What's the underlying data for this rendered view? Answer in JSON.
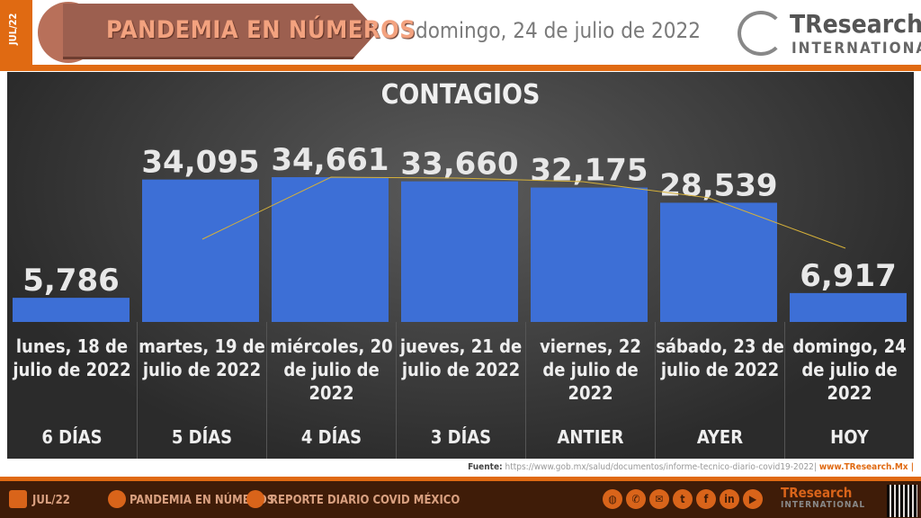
{
  "header": {
    "side_label": "JUL/22",
    "title": "PANDEMIA EN NÚMEROS",
    "date": "domingo, 24 de julio de 2022",
    "logo_main": "TResearch",
    "logo_sub": "INTERNATIONAL"
  },
  "chart_data": {
    "type": "bar",
    "title": "CONTAGIOS",
    "categories": [
      "lunes, 18 de julio de 2022",
      "martes, 19 de julio de 2022",
      "miércoles, 20 de julio de 2022",
      "jueves, 21 de julio de 2022",
      "viernes, 22 de julio de 2022",
      "sábado, 23 de julio de 2022",
      "domingo, 24 de julio de 2022"
    ],
    "sublabels": [
      "6 DÍAS",
      "5 DÍAS",
      "4 DÍAS",
      "3 DÍAS",
      "ANTIER",
      "AYER",
      "HOY"
    ],
    "values": [
      5786,
      34095,
      34661,
      33660,
      32175,
      28539,
      6917
    ],
    "value_labels": [
      "5,786",
      "34,095",
      "34,661",
      "33,660",
      "32,175",
      "28,539",
      "6,917"
    ],
    "bar_color": "#3d6fd6",
    "trend_color": "#d6b13a",
    "grid": false
  },
  "source": {
    "label": "Fuente:",
    "url": "https://www.gob.mx/salud/documentos/informe-tecnico-diario-covid19-2022|",
    "site": "www.TResearch.Mx |"
  },
  "footer": {
    "date": "JUL/22",
    "section": "PANDEMIA EN NÚMEROS",
    "report": "REPORTE DIARIO COVID MÉXICO",
    "social": [
      "globe",
      "phone",
      "mail",
      "twitter",
      "facebook",
      "linkedin",
      "youtube"
    ],
    "logo_main": "TResearch",
    "logo_sub": "INTERNATIONAL"
  }
}
